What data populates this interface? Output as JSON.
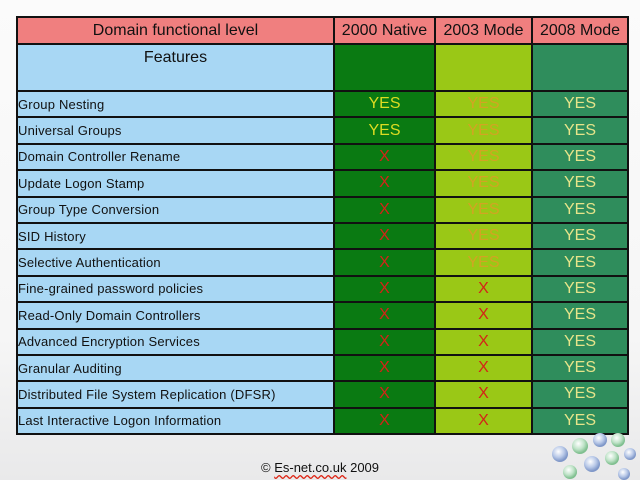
{
  "table": {
    "header": {
      "feature": "Domain functional level",
      "levels": [
        "2000 Native",
        "2003 Mode",
        "2008 Mode"
      ]
    },
    "subheader": "Features",
    "rows": [
      {
        "feature": "Group Nesting",
        "v2000": "YES",
        "v2003": "YES",
        "v2008": "YES"
      },
      {
        "feature": "Universal Groups",
        "v2000": "YES",
        "v2003": "YES",
        "v2008": "YES"
      },
      {
        "feature": "Domain Controller Rename",
        "v2000": "X",
        "v2003": "YES",
        "v2008": "YES"
      },
      {
        "feature": "Update Logon Stamp",
        "v2000": "X",
        "v2003": "YES",
        "v2008": "YES"
      },
      {
        "feature": "Group Type Conversion",
        "v2000": "X",
        "v2003": "YES",
        "v2008": "YES"
      },
      {
        "feature": "SID History",
        "v2000": "X",
        "v2003": "YES",
        "v2008": "YES"
      },
      {
        "feature": "Selective Authentication",
        "v2000": "X",
        "v2003": "YES",
        "v2008": "YES"
      },
      {
        "feature": "Fine-grained password policies",
        "v2000": "X",
        "v2003": "X",
        "v2008": "YES"
      },
      {
        "feature": "Read-Only Domain Controllers",
        "v2000": "X",
        "v2003": "X",
        "v2008": "YES"
      },
      {
        "feature": "Advanced Encryption Services",
        "v2000": "X",
        "v2003": "X",
        "v2008": "YES"
      },
      {
        "feature": "Granular Auditing",
        "v2000": "X",
        "v2003": "X",
        "v2008": "YES"
      },
      {
        "feature": "Distributed File System Replication (DFSR)",
        "v2000": "X",
        "v2003": "X",
        "v2008": "YES"
      },
      {
        "feature": "Last Interactive Logon Information",
        "v2000": "X",
        "v2003": "X",
        "v2008": "YES"
      }
    ]
  },
  "footer": {
    "copyright": "©",
    "site": "Es-net.co.uk",
    "year": "2009"
  },
  "colors": {
    "header_bg": "#f07f7f",
    "feature_bg": "#a8d7f4",
    "col_2000": "#0a7a12",
    "col_2003": "#9ac816",
    "col_2008": "#2f8d5c",
    "yes_2000": "#dcdc22",
    "yes_2003": "#d2a423",
    "yes_2008": "#e6e48a",
    "no": "#d42318"
  }
}
